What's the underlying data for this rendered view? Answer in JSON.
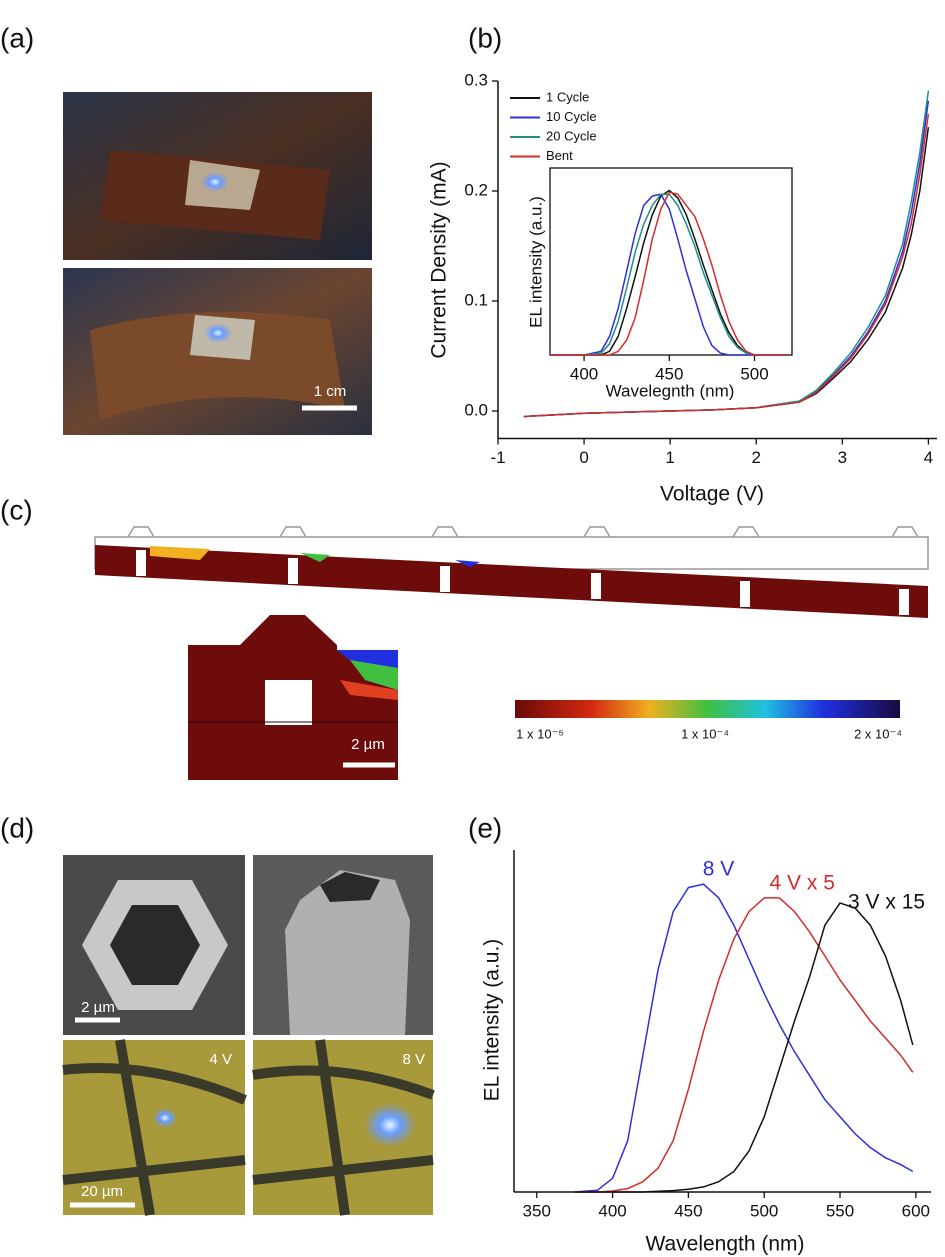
{
  "panel_labels": [
    "(a)",
    "(b)",
    "(c)",
    "(d)",
    "(e)"
  ],
  "panel_a": {
    "scale_bar": "1 cm"
  },
  "panel_c": {
    "scale_bar": "2 µm",
    "colorbar_labels": [
      "1 x 10⁻⁵",
      "1 x 10⁻⁴",
      "2 x 10⁻⁴"
    ]
  },
  "panel_d": {
    "scale_bars": [
      "2 µm",
      "20 µm"
    ],
    "voltage_labels": [
      "4 V",
      "8 V"
    ]
  },
  "chart_data": [
    {
      "type": "line",
      "xlabel": "Voltage (V)",
      "ylabel": "Current Density (mA)",
      "x": [
        -0.7,
        0,
        0.5,
        1,
        1.5,
        2,
        2.5,
        2.7,
        2.9,
        3.1,
        3.3,
        3.5,
        3.7,
        3.8,
        3.9,
        4
      ],
      "xlim": [
        -1,
        4.1
      ],
      "xticks": [
        -1,
        0,
        1,
        2,
        3,
        4
      ],
      "ylim": [
        -0.025,
        0.3
      ],
      "yticks": [
        {
          "value": 0,
          "label": "0.0"
        },
        0.1,
        0.2,
        0.3
      ],
      "legend": "upper left",
      "series": [
        {
          "name": "1 Cycle",
          "color": "#111111",
          "values": [
            -0.005,
            -0.002,
            -0.001,
            0,
            0.001,
            0.003,
            0.008,
            0.016,
            0.03,
            0.045,
            0.065,
            0.09,
            0.13,
            0.16,
            0.2,
            0.258
          ]
        },
        {
          "name": "10 Cycle",
          "color": "#2f2fe0",
          "values": [
            -0.005,
            -0.002,
            -0.001,
            0,
            0.001,
            0.003,
            0.009,
            0.018,
            0.033,
            0.05,
            0.072,
            0.1,
            0.145,
            0.18,
            0.225,
            0.282
          ]
        },
        {
          "name": "20 Cycle",
          "color": "#1f8f8a",
          "values": [
            -0.005,
            -0.002,
            -0.001,
            0,
            0.001,
            0.003,
            0.009,
            0.019,
            0.035,
            0.053,
            0.076,
            0.105,
            0.152,
            0.19,
            0.235,
            0.291
          ]
        },
        {
          "name": "Bent",
          "color": "#d62b2b",
          "values": [
            -0.005,
            -0.002,
            -0.001,
            0,
            0.001,
            0.003,
            0.008,
            0.017,
            0.032,
            0.048,
            0.07,
            0.097,
            0.14,
            0.17,
            0.215,
            0.27
          ]
        }
      ]
    },
    {
      "type": "line",
      "xlabel": "Wavelegnth (nm)",
      "ylabel": "EL intensity (a.u.)",
      "x": [
        380,
        400,
        410,
        415,
        420,
        425,
        430,
        435,
        440,
        445,
        450,
        455,
        460,
        465,
        470,
        475,
        480,
        485,
        490,
        495,
        500,
        520
      ],
      "xlim": [
        380,
        522
      ],
      "xticks": [
        400,
        450,
        500
      ],
      "ylim": [
        0,
        1
      ],
      "series": [
        {
          "color": "#111111",
          "values": [
            0,
            0,
            0,
            0.02,
            0.1,
            0.25,
            0.42,
            0.6,
            0.75,
            0.85,
            0.88,
            0.84,
            0.75,
            0.62,
            0.48,
            0.35,
            0.22,
            0.12,
            0.05,
            0.01,
            0,
            0
          ]
        },
        {
          "color": "#2f2fe0",
          "values": [
            0,
            0,
            0.02,
            0.1,
            0.25,
            0.45,
            0.65,
            0.8,
            0.85,
            0.86,
            0.78,
            0.62,
            0.45,
            0.3,
            0.15,
            0.05,
            0.01,
            0,
            0,
            0,
            0,
            0
          ]
        },
        {
          "color": "#1f8f8a",
          "values": [
            0,
            0,
            0.01,
            0.06,
            0.18,
            0.36,
            0.55,
            0.7,
            0.8,
            0.86,
            0.86,
            0.8,
            0.7,
            0.58,
            0.44,
            0.32,
            0.2,
            0.1,
            0.04,
            0.01,
            0,
            0
          ]
        },
        {
          "color": "#d62b2b",
          "values": [
            0,
            0,
            0,
            0,
            0.02,
            0.08,
            0.2,
            0.4,
            0.62,
            0.78,
            0.87,
            0.86,
            0.8,
            0.74,
            0.62,
            0.48,
            0.32,
            0.18,
            0.08,
            0.02,
            0,
            0
          ]
        }
      ]
    },
    {
      "type": "line",
      "xlabel": "Wavelength (nm)",
      "ylabel": "EL intensity (a.u.)",
      "x": [
        375,
        390,
        400,
        410,
        420,
        430,
        440,
        450,
        460,
        470,
        480,
        490,
        500,
        510,
        520,
        530,
        540,
        550,
        560,
        570,
        580,
        590,
        598
      ],
      "xlim": [
        335,
        610
      ],
      "xticks": [
        350,
        400,
        450,
        500,
        550,
        600
      ],
      "ylim": [
        0,
        1
      ],
      "series": [
        {
          "name": "8 V",
          "color": "#2f2fe0",
          "values": [
            0,
            0.005,
            0.04,
            0.15,
            0.4,
            0.65,
            0.82,
            0.89,
            0.9,
            0.86,
            0.78,
            0.68,
            0.58,
            0.49,
            0.41,
            0.34,
            0.27,
            0.22,
            0.17,
            0.13,
            0.1,
            0.08,
            0.06
          ]
        },
        {
          "name": "4 V x 5",
          "color": "#d62b2b",
          "values": [
            0,
            0,
            0.003,
            0.01,
            0.03,
            0.07,
            0.15,
            0.3,
            0.47,
            0.62,
            0.74,
            0.82,
            0.86,
            0.86,
            0.82,
            0.76,
            0.69,
            0.62,
            0.56,
            0.5,
            0.45,
            0.4,
            0.35
          ]
        },
        {
          "name": "3 V x 15",
          "color": "#111111",
          "values": [
            0,
            0,
            0,
            0,
            0,
            0.002,
            0.004,
            0.008,
            0.015,
            0.03,
            0.06,
            0.12,
            0.22,
            0.36,
            0.5,
            0.63,
            0.78,
            0.845,
            0.83,
            0.78,
            0.69,
            0.56,
            0.43
          ]
        }
      ]
    }
  ]
}
